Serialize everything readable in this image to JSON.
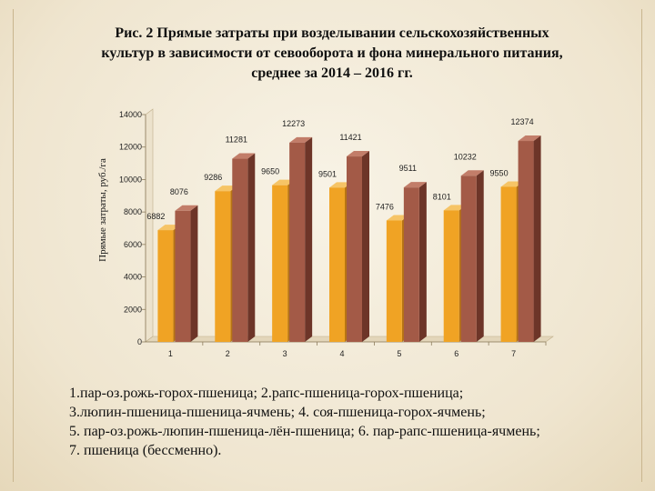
{
  "title_lines": [
    "Рис. 2  Прямые затраты при возделывании сельскохозяйственных",
    "культур в зависимости от севооборота и фона минерального питания,",
    "среднее за 2014 – 2016 гг."
  ],
  "caption_lines": [
    "1.пар-оз.рожь-горох-пшеница;  2.рапс-пшеница-горох-пшеница;",
    " 3.люпин-пшеница-пшеница-ячмень;  4. соя-пшеница-горох-ячмень;",
    " 5. пар-оз.рожь-люпин-пшеница-лён-пшеница;  6. пар-рапс-пшеница-ячмень;",
    "7. пшеница (бессменно)."
  ],
  "colors": {
    "series1_front": "#f0a324",
    "series1_side": "#b87412",
    "series1_top": "#f6c466",
    "series2_front": "#a35a47",
    "series2_side": "#6d3528",
    "series2_top": "#c27d69"
  },
  "chart_data": {
    "type": "bar",
    "title": "Рис. 2  Прямые затраты при возделывании сельскохозяйственных культур в зависимости от севооборота и фона минерального питания, среднее за 2014 – 2016 гг.",
    "xlabel": "",
    "ylabel": "Прямые затраты, руб./га",
    "ylim": [
      0,
      14000
    ],
    "yticks": [
      "0",
      "2000",
      "4000",
      "6000",
      "8000",
      "10000",
      "12000",
      "14000"
    ],
    "categories": [
      "1",
      "2",
      "3",
      "4",
      "5",
      "6",
      "7"
    ],
    "series": [
      {
        "values": [
          6882,
          9286,
          9650,
          9501,
          7476,
          8101,
          9550
        ]
      },
      {
        "values": [
          8076,
          11281,
          12273,
          11421,
          9511,
          10232,
          12374
        ]
      }
    ],
    "grid": false,
    "legend": "none",
    "style": "3d-clustered-column"
  }
}
